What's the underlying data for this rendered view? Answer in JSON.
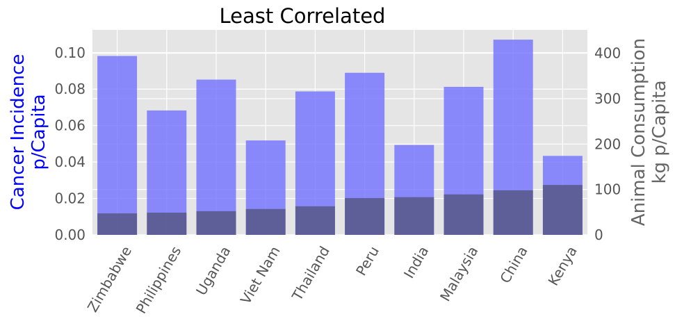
{
  "chart_data": {
    "type": "bar",
    "title": "Least Correlated",
    "categories": [
      "Zimbabwe",
      "Philippines",
      "Uganda",
      "Viet Nam",
      "Thailand",
      "Peru",
      "India",
      "Malaysia",
      "China",
      "Kenya"
    ],
    "series": [
      {
        "name": "Animal Consumption kg p/Capita",
        "axis": "right",
        "color": "#7070ff",
        "values": [
          394,
          274,
          342,
          208,
          316,
          357,
          198,
          326,
          430,
          174
        ]
      },
      {
        "name": "Cancer Incidence p/Capita",
        "axis": "left",
        "color": "#505078",
        "values": [
          0.0118,
          0.0122,
          0.013,
          0.0142,
          0.0157,
          0.0202,
          0.0207,
          0.0222,
          0.0245,
          0.0274
        ]
      }
    ],
    "left_axis": {
      "label_lines": [
        "Cancer Incidence",
        "p/Capita"
      ],
      "label_color": "#0000ff",
      "ylim": [
        0,
        0.1125
      ],
      "ticks": [
        "0.00",
        "0.02",
        "0.04",
        "0.06",
        "0.08",
        "0.10"
      ]
    },
    "right_axis": {
      "label_lines": [
        "Animal Consumption",
        "kg p/Capita"
      ],
      "label_color": "#666666",
      "ylim": [
        0,
        451.5
      ],
      "ticks": [
        "0",
        "100",
        "200",
        "300",
        "400"
      ]
    },
    "grid": true,
    "background": "#e5e5e5",
    "xtick_rotation": -60
  }
}
